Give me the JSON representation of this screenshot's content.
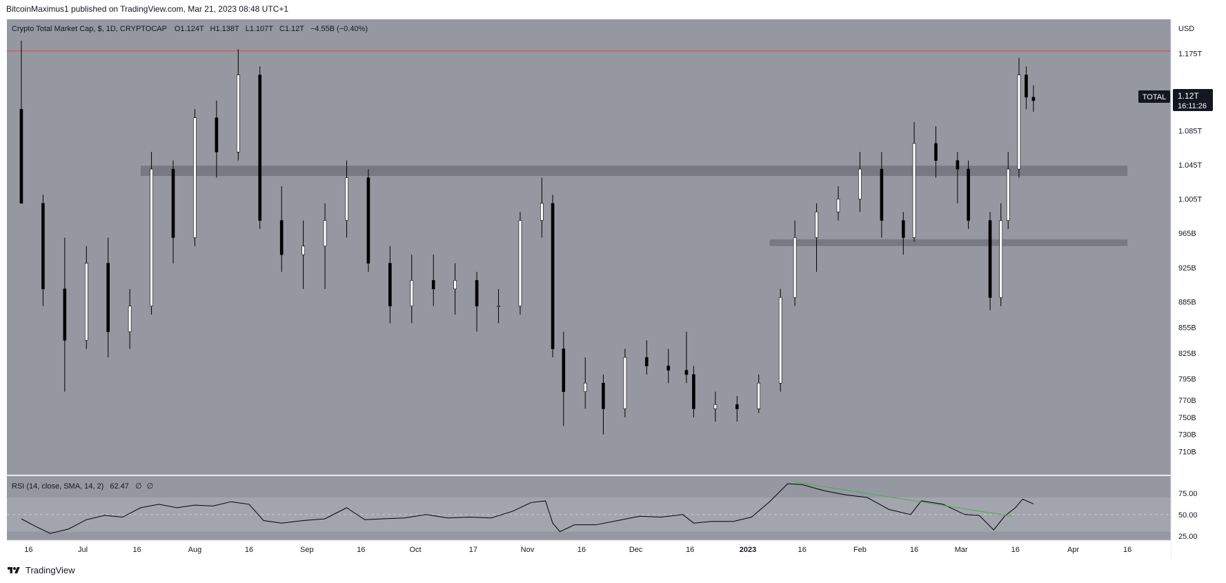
{
  "publisher": "BitcoinMaximus1 published on TradingView.com, Mar 21, 2023 08:48 UTC+1",
  "legend": {
    "symbol": "Crypto Total Market Cap, $, 1D, CRYPTOCAP",
    "o_label": "O",
    "o_value": "1.124T",
    "h_label": "H",
    "h_value": "1.138T",
    "l_label": "L",
    "l_value": "1.107T",
    "c_label": "C",
    "c_value": "1.12T",
    "change": "−4.55B (−0.40%)"
  },
  "rsi_legend": {
    "label": "RSI (14, close, SMA, 14, 2)",
    "value": "62.47",
    "extra1": "∅",
    "extra2": "∅"
  },
  "currency": "USD",
  "price_tag": {
    "name": "TOTAL",
    "value": "1.12T",
    "countdown": "16:11:26"
  },
  "brand": "TradingView",
  "colors": {
    "background": "#9598a1",
    "candle_up": "#ffffff",
    "candle_down": "#000000",
    "resistance_line": "#f23645",
    "zone": "#6f737c",
    "rsi_line": "#000000",
    "rsi_trendline": "#4caf50",
    "price_tag": "#131722"
  },
  "chart_data": [
    {
      "type": "candlestick",
      "series": [
        {
          "name": "Crypto Total Market Cap, $, 1D, CRYPTOCAP"
        }
      ],
      "x_ticks": [
        "16",
        "Jul",
        "16",
        "Aug",
        "16",
        "Sep",
        "16",
        "Oct",
        "17",
        "Nov",
        "16",
        "Dec",
        "16",
        "2023",
        "16",
        "Feb",
        "16",
        "Mar",
        "16",
        "Apr",
        "16"
      ],
      "x_tick_dates": [
        "2022-06-16",
        "2022-07-01",
        "2022-07-16",
        "2022-08-01",
        "2022-08-16",
        "2022-09-01",
        "2022-09-16",
        "2022-10-01",
        "2022-10-17",
        "2022-11-01",
        "2022-11-16",
        "2022-12-01",
        "2022-12-16",
        "2023-01-01",
        "2023-01-16",
        "2023-02-01",
        "2023-02-16",
        "2023-03-01",
        "2023-03-16",
        "2023-04-01",
        "2023-04-16"
      ],
      "y_ticks": [
        "1.175T",
        "1.085T",
        "1.045T",
        "1.005T",
        "965B",
        "925B",
        "885B",
        "855B",
        "825B",
        "795B",
        "770B",
        "750B",
        "730B",
        "710B"
      ],
      "y_tick_values": [
        1175,
        1085,
        1045,
        1005,
        965,
        925,
        885,
        855,
        825,
        795,
        770,
        750,
        730,
        710
      ],
      "y_unit": "B USD",
      "resistance_level": 1178,
      "support_zones": [
        {
          "low": 1032,
          "high": 1044,
          "start": "2022-07-17",
          "end": "2023-04-16"
        },
        {
          "low": 950,
          "high": 958,
          "start": "2023-01-07",
          "end": "2023-04-16"
        }
      ],
      "candles": [
        {
          "date": "2022-06-14",
          "o": 1110,
          "h": 1190,
          "l": 1000,
          "c": 1000
        },
        {
          "date": "2022-06-20",
          "o": 1000,
          "h": 1010,
          "l": 880,
          "c": 900
        },
        {
          "date": "2022-06-26",
          "o": 900,
          "h": 960,
          "l": 780,
          "c": 840
        },
        {
          "date": "2022-07-02",
          "o": 840,
          "h": 950,
          "l": 830,
          "c": 930
        },
        {
          "date": "2022-07-08",
          "o": 930,
          "h": 960,
          "l": 820,
          "c": 850
        },
        {
          "date": "2022-07-14",
          "o": 850,
          "h": 900,
          "l": 830,
          "c": 880
        },
        {
          "date": "2022-07-20",
          "o": 880,
          "h": 1060,
          "l": 870,
          "c": 1040
        },
        {
          "date": "2022-07-26",
          "o": 1040,
          "h": 1050,
          "l": 930,
          "c": 960
        },
        {
          "date": "2022-08-01",
          "o": 960,
          "h": 1110,
          "l": 950,
          "c": 1100
        },
        {
          "date": "2022-08-07",
          "o": 1100,
          "h": 1120,
          "l": 1030,
          "c": 1060
        },
        {
          "date": "2022-08-13",
          "o": 1060,
          "h": 1180,
          "l": 1050,
          "c": 1150
        },
        {
          "date": "2022-08-19",
          "o": 1150,
          "h": 1160,
          "l": 970,
          "c": 980
        },
        {
          "date": "2022-08-25",
          "o": 980,
          "h": 1020,
          "l": 920,
          "c": 940
        },
        {
          "date": "2022-08-31",
          "o": 940,
          "h": 980,
          "l": 900,
          "c": 950
        },
        {
          "date": "2022-09-06",
          "o": 950,
          "h": 1000,
          "l": 900,
          "c": 980
        },
        {
          "date": "2022-09-12",
          "o": 980,
          "h": 1050,
          "l": 960,
          "c": 1030
        },
        {
          "date": "2022-09-18",
          "o": 1030,
          "h": 1040,
          "l": 920,
          "c": 930
        },
        {
          "date": "2022-09-24",
          "o": 930,
          "h": 950,
          "l": 860,
          "c": 880
        },
        {
          "date": "2022-09-30",
          "o": 880,
          "h": 940,
          "l": 860,
          "c": 910
        },
        {
          "date": "2022-10-06",
          "o": 910,
          "h": 940,
          "l": 880,
          "c": 900
        },
        {
          "date": "2022-10-12",
          "o": 900,
          "h": 930,
          "l": 870,
          "c": 910
        },
        {
          "date": "2022-10-18",
          "o": 910,
          "h": 920,
          "l": 850,
          "c": 880
        },
        {
          "date": "2022-10-24",
          "o": 880,
          "h": 900,
          "l": 860,
          "c": 880
        },
        {
          "date": "2022-10-30",
          "o": 880,
          "h": 990,
          "l": 870,
          "c": 980
        },
        {
          "date": "2022-11-05",
          "o": 980,
          "h": 1030,
          "l": 960,
          "c": 1000
        },
        {
          "date": "2022-11-08",
          "o": 1000,
          "h": 1010,
          "l": 820,
          "c": 830
        },
        {
          "date": "2022-11-11",
          "o": 830,
          "h": 850,
          "l": 740,
          "c": 780
        },
        {
          "date": "2022-11-17",
          "o": 780,
          "h": 820,
          "l": 760,
          "c": 790
        },
        {
          "date": "2022-11-22",
          "o": 790,
          "h": 800,
          "l": 730,
          "c": 760
        },
        {
          "date": "2022-11-28",
          "o": 760,
          "h": 830,
          "l": 750,
          "c": 820
        },
        {
          "date": "2022-12-04",
          "o": 820,
          "h": 840,
          "l": 800,
          "c": 810
        },
        {
          "date": "2022-12-10",
          "o": 810,
          "h": 830,
          "l": 790,
          "c": 805
        },
        {
          "date": "2022-12-15",
          "o": 805,
          "h": 850,
          "l": 790,
          "c": 800
        },
        {
          "date": "2022-12-17",
          "o": 800,
          "h": 810,
          "l": 750,
          "c": 760
        },
        {
          "date": "2022-12-23",
          "o": 760,
          "h": 780,
          "l": 745,
          "c": 765
        },
        {
          "date": "2022-12-29",
          "o": 765,
          "h": 775,
          "l": 745,
          "c": 760
        },
        {
          "date": "2023-01-04",
          "o": 760,
          "h": 800,
          "l": 755,
          "c": 790
        },
        {
          "date": "2023-01-10",
          "o": 790,
          "h": 900,
          "l": 780,
          "c": 890
        },
        {
          "date": "2023-01-14",
          "o": 890,
          "h": 980,
          "l": 880,
          "c": 960
        },
        {
          "date": "2023-01-20",
          "o": 960,
          "h": 1000,
          "l": 920,
          "c": 990
        },
        {
          "date": "2023-01-26",
          "o": 990,
          "h": 1020,
          "l": 980,
          "c": 1005
        },
        {
          "date": "2023-02-01",
          "o": 1005,
          "h": 1060,
          "l": 990,
          "c": 1040
        },
        {
          "date": "2023-02-07",
          "o": 1040,
          "h": 1060,
          "l": 960,
          "c": 980
        },
        {
          "date": "2023-02-13",
          "o": 980,
          "h": 990,
          "l": 940,
          "c": 960
        },
        {
          "date": "2023-02-16",
          "o": 960,
          "h": 1095,
          "l": 955,
          "c": 1070
        },
        {
          "date": "2023-02-22",
          "o": 1070,
          "h": 1090,
          "l": 1030,
          "c": 1050
        },
        {
          "date": "2023-02-28",
          "o": 1050,
          "h": 1060,
          "l": 1000,
          "c": 1040
        },
        {
          "date": "2023-03-03",
          "o": 1040,
          "h": 1050,
          "l": 970,
          "c": 980
        },
        {
          "date": "2023-03-09",
          "o": 980,
          "h": 990,
          "l": 875,
          "c": 890
        },
        {
          "date": "2023-03-12",
          "o": 890,
          "h": 1000,
          "l": 880,
          "c": 980
        },
        {
          "date": "2023-03-14",
          "o": 980,
          "h": 1060,
          "l": 970,
          "c": 1040
        },
        {
          "date": "2023-03-17",
          "o": 1040,
          "h": 1170,
          "l": 1030,
          "c": 1150
        },
        {
          "date": "2023-03-19",
          "o": 1150,
          "h": 1160,
          "l": 1110,
          "c": 1124
        },
        {
          "date": "2023-03-21",
          "o": 1124,
          "h": 1138,
          "l": 1107,
          "c": 1120
        }
      ]
    },
    {
      "type": "line",
      "series": [
        {
          "name": "RSI (14, close, SMA, 14, 2)"
        }
      ],
      "y_ticks": [
        "75.00",
        "50.00",
        "25.00"
      ],
      "y_tick_values": [
        75,
        50,
        25
      ],
      "band": [
        30,
        70
      ],
      "trendline": {
        "start": {
          "date": "2023-01-14",
          "value": 88
        },
        "end": {
          "date": "2023-03-15",
          "value": 48
        }
      },
      "points": [
        {
          "date": "2022-06-14",
          "value": 45
        },
        {
          "date": "2022-06-18",
          "value": 36
        },
        {
          "date": "2022-06-22",
          "value": 28
        },
        {
          "date": "2022-06-27",
          "value": 33
        },
        {
          "date": "2022-07-02",
          "value": 44
        },
        {
          "date": "2022-07-07",
          "value": 49
        },
        {
          "date": "2022-07-12",
          "value": 47
        },
        {
          "date": "2022-07-17",
          "value": 58
        },
        {
          "date": "2022-07-22",
          "value": 62
        },
        {
          "date": "2022-07-27",
          "value": 58
        },
        {
          "date": "2022-08-01",
          "value": 61
        },
        {
          "date": "2022-08-06",
          "value": 60
        },
        {
          "date": "2022-08-11",
          "value": 65
        },
        {
          "date": "2022-08-16",
          "value": 62
        },
        {
          "date": "2022-08-20",
          "value": 43
        },
        {
          "date": "2022-08-25",
          "value": 40
        },
        {
          "date": "2022-08-31",
          "value": 43
        },
        {
          "date": "2022-09-06",
          "value": 45
        },
        {
          "date": "2022-09-12",
          "value": 58
        },
        {
          "date": "2022-09-17",
          "value": 44
        },
        {
          "date": "2022-09-22",
          "value": 45
        },
        {
          "date": "2022-09-28",
          "value": 46
        },
        {
          "date": "2022-10-04",
          "value": 50
        },
        {
          "date": "2022-10-10",
          "value": 46
        },
        {
          "date": "2022-10-16",
          "value": 47
        },
        {
          "date": "2022-10-22",
          "value": 46
        },
        {
          "date": "2022-10-28",
          "value": 54
        },
        {
          "date": "2022-11-02",
          "value": 64
        },
        {
          "date": "2022-11-06",
          "value": 66
        },
        {
          "date": "2022-11-08",
          "value": 40
        },
        {
          "date": "2022-11-10",
          "value": 30
        },
        {
          "date": "2022-11-14",
          "value": 38
        },
        {
          "date": "2022-11-20",
          "value": 38
        },
        {
          "date": "2022-11-26",
          "value": 43
        },
        {
          "date": "2022-12-02",
          "value": 48
        },
        {
          "date": "2022-12-08",
          "value": 47
        },
        {
          "date": "2022-12-14",
          "value": 50
        },
        {
          "date": "2022-12-17",
          "value": 40
        },
        {
          "date": "2022-12-22",
          "value": 42
        },
        {
          "date": "2022-12-28",
          "value": 42
        },
        {
          "date": "2023-01-02",
          "value": 47
        },
        {
          "date": "2023-01-07",
          "value": 65
        },
        {
          "date": "2023-01-12",
          "value": 86
        },
        {
          "date": "2023-01-16",
          "value": 85
        },
        {
          "date": "2023-01-22",
          "value": 78
        },
        {
          "date": "2023-01-28",
          "value": 73
        },
        {
          "date": "2023-02-03",
          "value": 70
        },
        {
          "date": "2023-02-09",
          "value": 56
        },
        {
          "date": "2023-02-15",
          "value": 50
        },
        {
          "date": "2023-02-18",
          "value": 66
        },
        {
          "date": "2023-02-24",
          "value": 62
        },
        {
          "date": "2023-03-02",
          "value": 50
        },
        {
          "date": "2023-03-06",
          "value": 49
        },
        {
          "date": "2023-03-10",
          "value": 32
        },
        {
          "date": "2023-03-13",
          "value": 48
        },
        {
          "date": "2023-03-16",
          "value": 58
        },
        {
          "date": "2023-03-18",
          "value": 68
        },
        {
          "date": "2023-03-21",
          "value": 62.47
        }
      ]
    }
  ]
}
